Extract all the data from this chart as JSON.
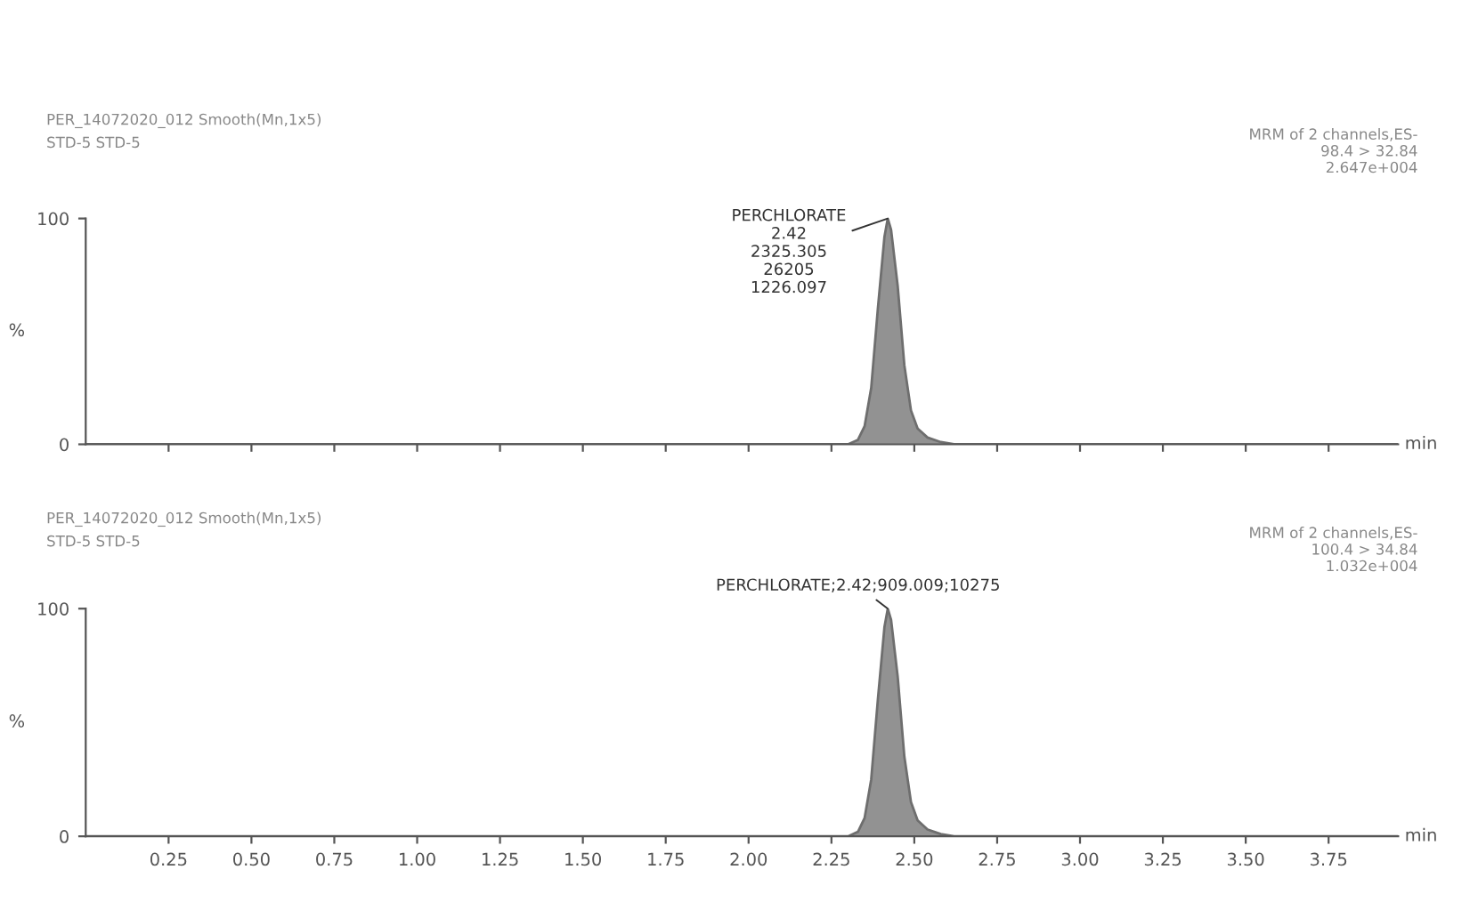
{
  "chart_data": [
    {
      "type": "area",
      "title": "PER_14072020_012 Smooth(Mn,1x5)",
      "subtitle": "STD-5 STD-5",
      "xlabel": "min",
      "ylabel": "%",
      "tick_labels": "y",
      "x": [
        0,
        2.3,
        2.33,
        2.35,
        2.37,
        2.39,
        2.41,
        2.42,
        2.43,
        2.45,
        2.47,
        2.49,
        2.51,
        2.54,
        2.58,
        2.62,
        3.96
      ],
      "series": [
        {
          "color": "#6e6e6e",
          "values": [
            0,
            0,
            2,
            8,
            25,
            60,
            92,
            100,
            95,
            70,
            35,
            15,
            7,
            3,
            1,
            0,
            0
          ]
        }
      ],
      "xlim": [
        0,
        3.96
      ],
      "ylim": [
        0,
        100
      ],
      "yticks": [
        0,
        100
      ],
      "xticks": [
        {
          "value": 0.25,
          "label": null
        },
        {
          "value": 0.5,
          "label": null
        },
        {
          "value": 0.75,
          "label": null
        },
        {
          "value": 1.0,
          "label": null
        },
        {
          "value": 1.25,
          "label": null
        },
        {
          "value": 1.5,
          "label": null
        },
        {
          "value": 1.75,
          "label": null
        },
        {
          "value": 2.0,
          "label": null
        },
        {
          "value": 2.25,
          "label": null
        },
        {
          "value": 2.5,
          "label": null
        },
        {
          "value": 2.75,
          "label": null
        },
        {
          "value": 3.0,
          "label": null
        },
        {
          "value": 3.25,
          "label": null
        },
        {
          "value": 3.5,
          "label": null
        },
        {
          "value": 3.75,
          "label": null
        }
      ],
      "annotations": [
        {
          "text": "PERCHLORATE\n2.42\n2325.305\n26205\n1226.097",
          "x": 2.42,
          "y": 100
        },
        "MRM of 2 channels,ES-\n98.4 > 32.84\n2.647e+004"
      ]
    },
    {
      "type": "area",
      "title": "PER_14072020_012 Smooth(Mn,1x5)",
      "subtitle": "STD-5 STD-5",
      "xlabel": "min",
      "ylabel": "%",
      "x": [
        0,
        2.3,
        2.33,
        2.35,
        2.37,
        2.39,
        2.41,
        2.42,
        2.43,
        2.45,
        2.47,
        2.49,
        2.51,
        2.54,
        2.58,
        2.62,
        3.96
      ],
      "series": [
        {
          "color": "#6e6e6e",
          "values": [
            0,
            0,
            2,
            8,
            25,
            60,
            92,
            100,
            95,
            70,
            35,
            15,
            7,
            3,
            1,
            0,
            0
          ]
        }
      ],
      "xlim": [
        0,
        3.96
      ],
      "ylim": [
        0,
        100
      ],
      "yticks": [
        0,
        100
      ],
      "xticks": [
        {
          "value": 0.25,
          "label": "0.25"
        },
        {
          "value": 0.5,
          "label": "0.50"
        },
        {
          "value": 0.75,
          "label": "0.75"
        },
        {
          "value": 1.0,
          "label": "1.00"
        },
        {
          "value": 1.25,
          "label": "1.25"
        },
        {
          "value": 1.5,
          "label": "1.50"
        },
        {
          "value": 1.75,
          "label": "1.75"
        },
        {
          "value": 2.0,
          "label": "2.00"
        },
        {
          "value": 2.25,
          "label": "2.25"
        },
        {
          "value": 2.5,
          "label": "2.50"
        },
        {
          "value": 2.75,
          "label": "2.75"
        },
        {
          "value": 3.0,
          "label": "3.00"
        },
        {
          "value": 3.25,
          "label": "3.25"
        },
        {
          "value": 3.5,
          "label": "3.50"
        },
        {
          "value": 3.75,
          "label": "3.75"
        }
      ],
      "annotations": [
        {
          "text": "PERCHLORATE;2.42;909.009;10275",
          "x": 2.42,
          "y": 100
        },
        "MRM of 2 channels,ES-\n100.4 > 34.84\n1.032e+004"
      ]
    }
  ]
}
